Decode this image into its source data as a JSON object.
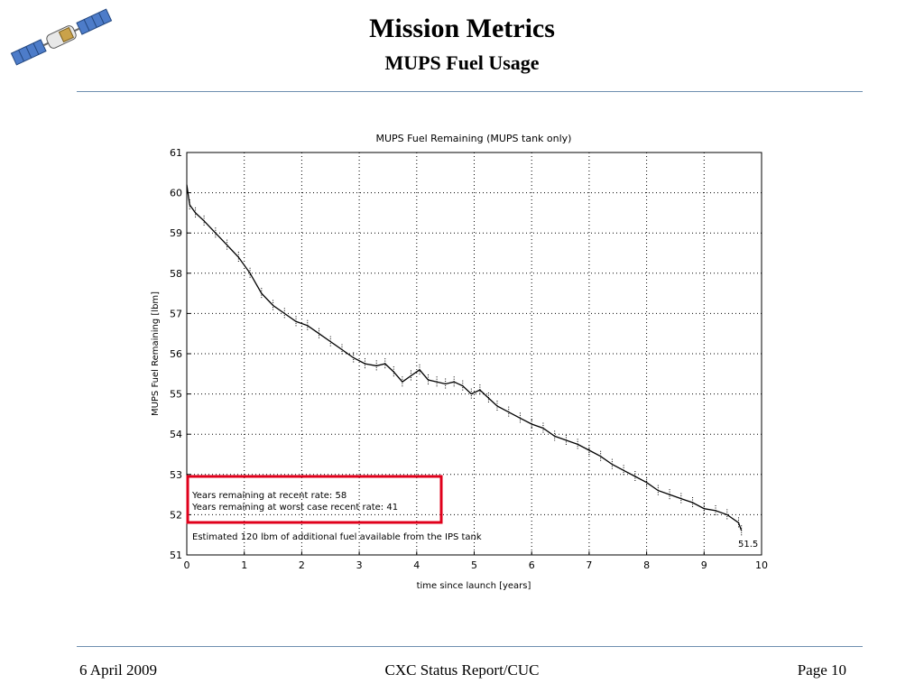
{
  "slide": {
    "title": "Mission Metrics",
    "subtitle": "MUPS Fuel Usage"
  },
  "logo": {
    "icon": "satellite-icon"
  },
  "footer": {
    "date": "6 April 2009",
    "report": "CXC Status Report/CUC",
    "page": "Page 10"
  },
  "colors": {
    "rule": "#6f8fb0",
    "highlight_box": "#e0001b",
    "grid": "#000000"
  },
  "chart_data": {
    "type": "line",
    "title": "MUPS Fuel Remaining (MUPS tank only)",
    "xlabel": "time since launch [years]",
    "ylabel": "MUPS Fuel Remaining [lbm]",
    "xlim": [
      0,
      10
    ],
    "ylim": [
      51,
      61
    ],
    "x_ticks": [
      "0",
      "1",
      "2",
      "3",
      "4",
      "5",
      "6",
      "7",
      "8",
      "9",
      "10"
    ],
    "y_ticks": [
      "51",
      "52",
      "53",
      "54",
      "55",
      "56",
      "57",
      "58",
      "59",
      "60",
      "61"
    ],
    "grid": true,
    "series": [
      {
        "x": [
          0.0,
          0.05,
          0.15,
          0.3,
          0.5,
          0.7,
          0.9,
          1.1,
          1.3,
          1.5,
          1.7,
          1.9,
          2.1,
          2.3,
          2.5,
          2.7,
          2.9,
          3.1,
          3.3,
          3.45,
          3.6,
          3.75,
          3.9,
          4.05,
          4.2,
          4.35,
          4.5,
          4.65,
          4.8,
          4.95,
          5.1,
          5.25,
          5.4,
          5.6,
          5.8,
          6.0,
          6.2,
          6.4,
          6.6,
          6.8,
          7.0,
          7.2,
          7.4,
          7.6,
          7.8,
          8.0,
          8.2,
          8.4,
          8.6,
          8.8,
          9.0,
          9.2,
          9.4,
          9.6,
          9.65
        ],
        "y": [
          60.2,
          59.7,
          59.5,
          59.3,
          59.0,
          58.7,
          58.4,
          58.0,
          57.5,
          57.2,
          57.0,
          56.8,
          56.7,
          56.5,
          56.3,
          56.1,
          55.9,
          55.75,
          55.7,
          55.75,
          55.55,
          55.3,
          55.45,
          55.6,
          55.35,
          55.3,
          55.25,
          55.3,
          55.2,
          55.0,
          55.1,
          54.9,
          54.7,
          54.55,
          54.4,
          54.25,
          54.15,
          53.95,
          53.85,
          53.75,
          53.6,
          53.45,
          53.25,
          53.1,
          52.95,
          52.8,
          52.6,
          52.5,
          52.4,
          52.3,
          52.15,
          52.1,
          52.0,
          51.8,
          51.6
        ]
      }
    ],
    "annotations": {
      "end_value": "51.5",
      "box_line1": "Years remaining at recent rate: 58",
      "box_line2": "Years remaining at worst case recent rate: 41",
      "ips_note": "Estimated 120 lbm of additional fuel available from the IPS tank"
    }
  }
}
